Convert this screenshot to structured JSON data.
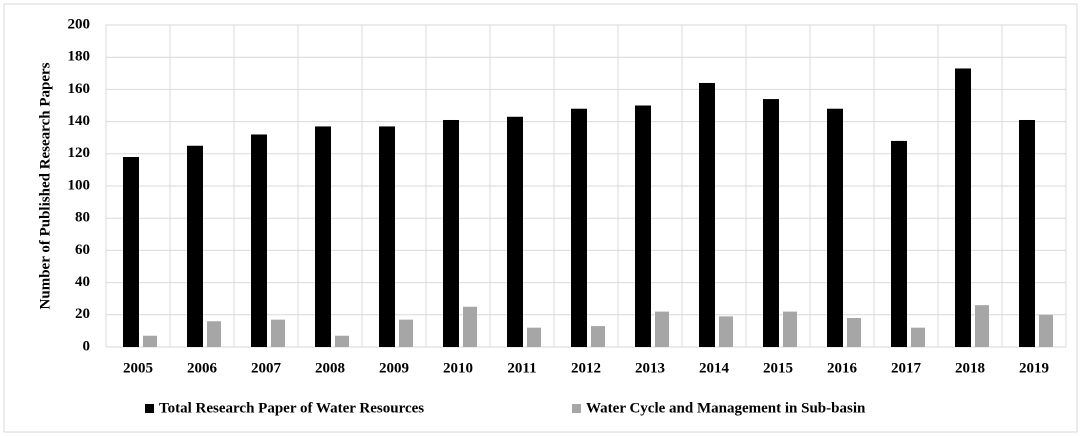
{
  "chart_data": {
    "type": "bar",
    "y_label": "Number of Published Research Papers",
    "categories": [
      "2005",
      "2006",
      "2007",
      "2008",
      "2009",
      "2010",
      "2011",
      "2012",
      "2013",
      "2014",
      "2015",
      "2016",
      "2017",
      "2018",
      "2019"
    ],
    "series": [
      {
        "name": "Total Research Paper of Water Resources",
        "color": "#000000",
        "values": [
          118,
          125,
          132,
          137,
          137,
          141,
          143,
          148,
          150,
          164,
          154,
          148,
          128,
          173,
          141
        ]
      },
      {
        "name": "Water Cycle and Management in Sub-basin",
        "color": "#a6a6a6",
        "values": [
          7,
          16,
          17,
          7,
          17,
          25,
          12,
          13,
          22,
          19,
          22,
          18,
          12,
          26,
          20
        ]
      }
    ],
    "ylim": [
      0,
      200
    ],
    "yticks": [
      0,
      20,
      40,
      60,
      80,
      100,
      120,
      140,
      160,
      180,
      200
    ],
    "grid": true,
    "legend": "bottom"
  }
}
